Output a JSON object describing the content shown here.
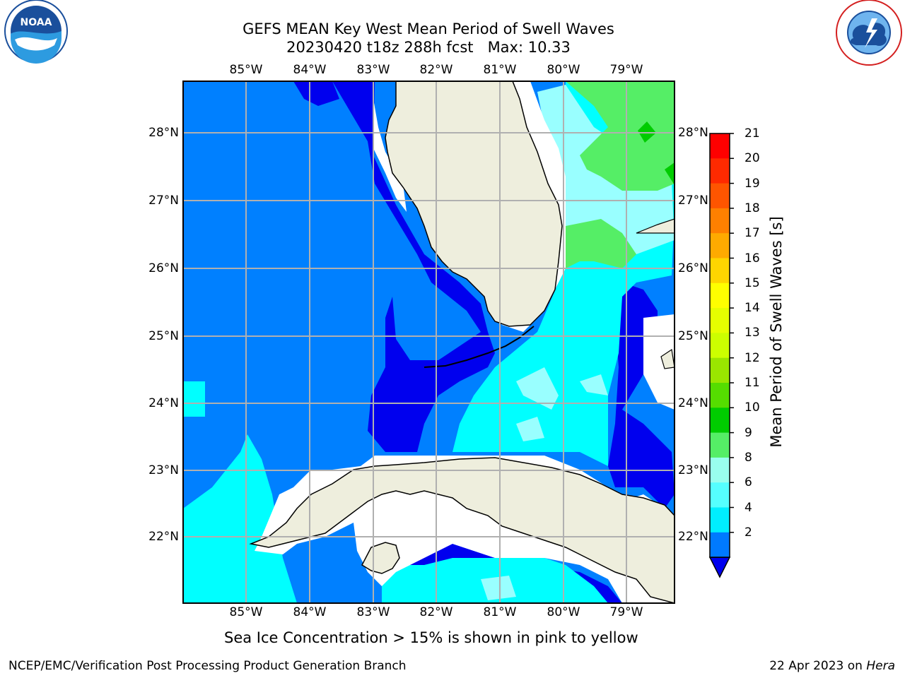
{
  "title": {
    "line1": "GEFS MEAN Key West Mean Period of Swell Waves",
    "line2": "20230420 t18z 288h fcst   Max: 10.33"
  },
  "longitude_ticks": [
    "85°W",
    "84°W",
    "83°W",
    "82°W",
    "81°W",
    "80°W",
    "79°W"
  ],
  "latitude_ticks": [
    "28°N",
    "27°N",
    "26°N",
    "25°N",
    "24°N",
    "23°N",
    "22°N"
  ],
  "colorbar": {
    "label": "Mean Period of Swell Waves [s]",
    "ticks": [
      "21",
      "20",
      "19",
      "18",
      "17",
      "16",
      "15",
      "14",
      "13",
      "12",
      "11",
      "10",
      "9",
      "8",
      "6",
      "4",
      "2"
    ],
    "colors": [
      "#ff0000",
      "#ff2a00",
      "#ff5500",
      "#ff8000",
      "#ffaa00",
      "#ffd500",
      "#ffff00",
      "#e6ff00",
      "#ccff00",
      "#9ae600",
      "#55dd00",
      "#00cc00",
      "#55ee66",
      "#99ffee",
      "#55ffff",
      "#00eeff",
      "#007aff"
    ]
  },
  "legend": {
    "ocean_deep_blue": "#0000ee",
    "ocean_blue": "#0080ff",
    "ocean_cyan": "#00ffff",
    "ocean_light_cyan": "#99ffff",
    "green": "#55ee66",
    "land": "#eeeedd"
  },
  "logos": {
    "left": "NOAA",
    "right": "NATIONAL WEATHER SERVICE"
  },
  "footnote": "Sea Ice Concentration > 15% is shown in pink to yellow",
  "credit": "NCEP/EMC/Verification Post Processing Product Generation Branch",
  "date": {
    "text": "22 Apr 2023 on ",
    "host": "Hera"
  }
}
